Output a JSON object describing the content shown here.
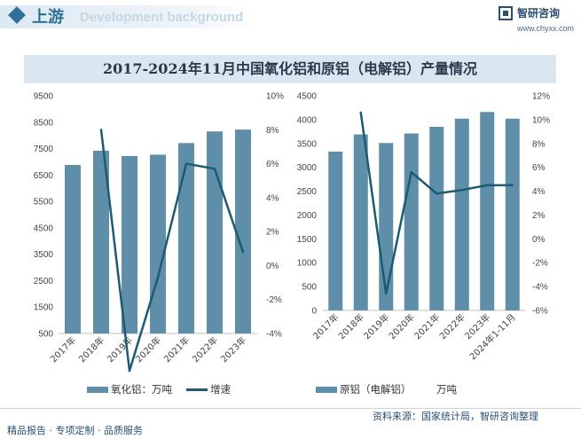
{
  "header": {
    "section_title": "上游",
    "section_subtitle_en": "Development background",
    "brand_name": "智研咨询",
    "brand_url": "www.chyxx.com"
  },
  "chart_title": "2017-2024年11月中国氧化铝和原铝（电解铝）产量情况",
  "legend": {
    "left_bar": "氧化铝：万吨",
    "left_line": "增速",
    "right_bar": "原铝（电解铝）",
    "right_extra": "万吨"
  },
  "footer": {
    "left": "精品报告 · 专项定制 · 品质服务",
    "source": "资料来源：国家统计局，智研咨询整理"
  },
  "colors": {
    "bar": "#5f8fa8",
    "line": "#1d5a73",
    "accent": "#2f6f95"
  },
  "chart_data": [
    {
      "type": "bar",
      "categories": [
        "2017年",
        "2018年",
        "2019年",
        "2020年",
        "2021年",
        "2022年",
        "2023年"
      ],
      "series": [
        {
          "name": "氧化铝：万吨",
          "type": "bar",
          "axis": "left",
          "values": [
            6880,
            7420,
            7220,
            7270,
            7710,
            8150,
            8220
          ]
        },
        {
          "name": "增速",
          "type": "line",
          "axis": "right",
          "values": [
            null,
            8.0,
            -6.2,
            -0.7,
            6.0,
            5.7,
            0.8
          ]
        }
      ],
      "y_left": {
        "min": 500,
        "max": 9500,
        "ticks": [
          500,
          1500,
          2500,
          3500,
          4500,
          5500,
          6500,
          7500,
          8500,
          9500
        ]
      },
      "y_right": {
        "min": -4,
        "max": 10,
        "ticks": [
          "-4%",
          "-2%",
          "0%",
          "2%",
          "4%",
          "6%",
          "8%",
          "10%"
        ]
      }
    },
    {
      "type": "bar",
      "categories": [
        "2017年",
        "2018年",
        "2019年",
        "2020年",
        "2021年",
        "2022年",
        "2023年",
        "2024年1-11月"
      ],
      "series": [
        {
          "name": "原铝（电解铝）",
          "type": "bar",
          "axis": "left",
          "values": [
            3330,
            3690,
            3510,
            3710,
            3850,
            4020,
            4160,
            4020
          ]
        },
        {
          "name": "增速",
          "type": "line",
          "axis": "right",
          "values": [
            null,
            10.6,
            -4.6,
            5.6,
            3.8,
            4.1,
            4.5,
            4.5
          ]
        }
      ],
      "y_left": {
        "min": 0,
        "max": 4500,
        "ticks": [
          0,
          500,
          1000,
          1500,
          2000,
          2500,
          3000,
          3500,
          4000,
          4500
        ]
      },
      "y_right": {
        "min": -6,
        "max": 12,
        "ticks": [
          "-6%",
          "-4%",
          "-2%",
          "0%",
          "2%",
          "4%",
          "6%",
          "8%",
          "10%",
          "12%"
        ]
      }
    }
  ]
}
